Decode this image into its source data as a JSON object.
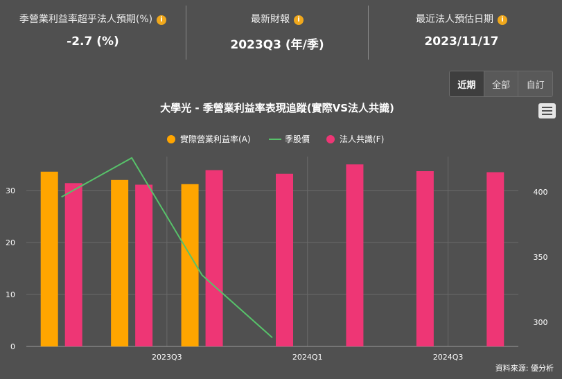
{
  "stats": [
    {
      "label": "季營業利益率超乎法人預期(%)",
      "value": "-2.7 (%)",
      "icon": "info-icon"
    },
    {
      "label": "最新財報",
      "value": "2023Q3 (年/季)",
      "icon": "info-icon"
    },
    {
      "label": "最近法人預估日期",
      "value": "2023/11/17",
      "icon": "info-icon"
    }
  ],
  "range_buttons": {
    "recent": "近期",
    "all": "全部",
    "custom": "自訂",
    "active": "recent"
  },
  "source": "資料來源: 優分析",
  "colors": {
    "actual": "#ffa500",
    "price": "#57c26a",
    "consensus": "#ee3675",
    "background": "#505050"
  },
  "chart_data": {
    "type": "bar",
    "title": "大學光 - 季營業利益率表現追蹤(實際VS法人共識)",
    "categories": [
      "",
      "",
      "2023Q3",
      "",
      "2024Q1",
      "",
      "2024Q3"
    ],
    "x_tick_labels": [
      {
        "index": 2,
        "label": "2023Q3"
      },
      {
        "index": 4,
        "label": "2024Q1"
      },
      {
        "index": 6,
        "label": "2024Q3"
      }
    ],
    "series": [
      {
        "name": "實際營業利益率(A)",
        "type": "bar",
        "axis": "left",
        "color": "#ffa500",
        "values": [
          33.6,
          32.0,
          31.2,
          null,
          null,
          null,
          null
        ]
      },
      {
        "name": "季股價",
        "type": "line",
        "axis": "right",
        "color": "#57c26a",
        "values": [
          396,
          426,
          336,
          288,
          null,
          null,
          null
        ]
      },
      {
        "name": "法人共識(F)",
        "type": "bar",
        "axis": "left",
        "color": "#ee3675",
        "values": [
          31.4,
          31.1,
          33.9,
          33.2,
          35.0,
          33.7,
          33.5
        ]
      }
    ],
    "y_left": {
      "ticks": [
        0,
        10,
        20,
        30
      ],
      "range": [
        0,
        36.5
      ]
    },
    "y_right": {
      "ticks": [
        300,
        350,
        400
      ],
      "range": [
        281.25,
        427
      ]
    },
    "grid": true,
    "legend_position": "top-center"
  }
}
